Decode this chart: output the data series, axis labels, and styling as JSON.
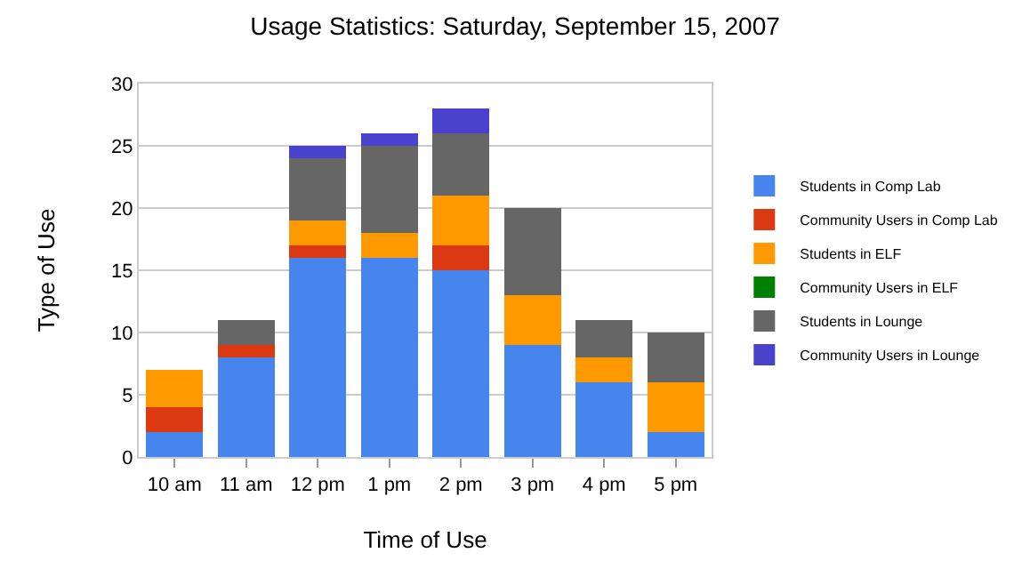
{
  "chart_data": {
    "type": "bar",
    "stacked": true,
    "title": "Usage Statistics: Saturday, September 15, 2007",
    "xlabel": "Time of Use",
    "ylabel": "Type of Use",
    "categories": [
      "10 am",
      "11 am",
      "12 pm",
      "1 pm",
      "2 pm",
      "3 pm",
      "4 pm",
      "5 pm"
    ],
    "series": [
      {
        "name": "Students in Comp Lab",
        "color": "#4684ee",
        "values": [
          2,
          8,
          16,
          16,
          15,
          9,
          6,
          2
        ]
      },
      {
        "name": "Community Users in Comp Lab",
        "color": "#dc3912",
        "values": [
          2,
          1,
          1,
          0,
          2,
          0,
          0,
          0
        ]
      },
      {
        "name": "Students in ELF",
        "color": "#ff9900",
        "values": [
          3,
          0,
          2,
          2,
          4,
          4,
          2,
          4
        ]
      },
      {
        "name": "Community Users in ELF",
        "color": "#008000",
        "values": [
          0,
          0,
          0,
          0,
          0,
          0,
          0,
          0
        ]
      },
      {
        "name": "Students in Lounge",
        "color": "#666666",
        "values": [
          0,
          2,
          5,
          7,
          5,
          7,
          3,
          4
        ]
      },
      {
        "name": "Community Users in Lounge",
        "color": "#4942cc",
        "values": [
          0,
          0,
          1,
          1,
          2,
          0,
          0,
          0
        ]
      }
    ],
    "ylim": [
      0,
      30
    ],
    "yticks": [
      0,
      5,
      10,
      15,
      20,
      25,
      30
    ],
    "grid": "y",
    "legend": "right"
  }
}
